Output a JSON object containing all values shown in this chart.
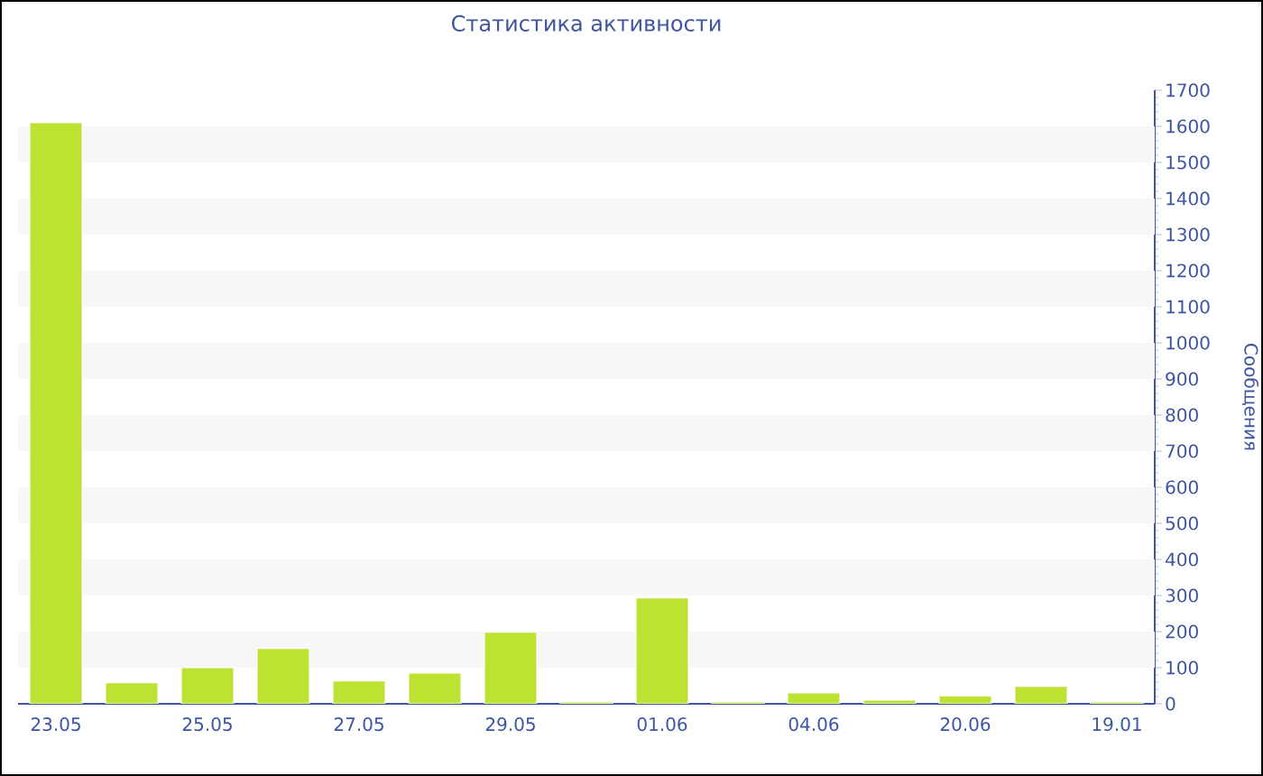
{
  "chart_data": {
    "type": "bar",
    "title": "Статистика активности",
    "ylabel": "Сообщения",
    "categories": [
      "23.05",
      null,
      "25.05",
      null,
      "27.05",
      null,
      "29.05",
      null,
      "01.06",
      null,
      "04.06",
      null,
      "20.06",
      null,
      "19.01"
    ],
    "values": [
      1610,
      58,
      100,
      153,
      63,
      85,
      198,
      5,
      293,
      5,
      30,
      10,
      22,
      48,
      5
    ],
    "color": "#bde232",
    "ylim": [
      0,
      1700
    ],
    "yticks": [
      0,
      100,
      200,
      300,
      400,
      500,
      600,
      700,
      800,
      900,
      1000,
      1100,
      1200,
      1300,
      1400,
      1500,
      1600,
      1700
    ],
    "bands": [
      {
        "axis": "y",
        "from": 100,
        "to": 200,
        "color": "#f7f7f7"
      },
      {
        "axis": "y",
        "from": 300,
        "to": 400,
        "color": "#f7f7f7"
      },
      {
        "axis": "y",
        "from": 500,
        "to": 600,
        "color": "#f7f7f7"
      },
      {
        "axis": "y",
        "from": 700,
        "to": 800,
        "color": "#f7f7f7"
      },
      {
        "axis": "y",
        "from": 900,
        "to": 1000,
        "color": "#f7f7f7"
      },
      {
        "axis": "y",
        "from": 1100,
        "to": 1200,
        "color": "#f7f7f7"
      },
      {
        "axis": "y",
        "from": 1300,
        "to": 1400,
        "color": "#f7f7f7"
      },
      {
        "axis": "y",
        "from": 1500,
        "to": 1600,
        "color": "#f7f7f7"
      }
    ]
  }
}
